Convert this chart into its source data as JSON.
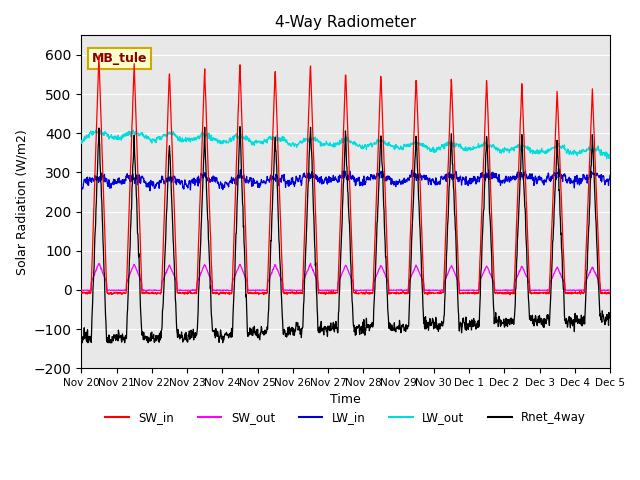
{
  "title": "4-Way Radiometer",
  "xlabel": "Time",
  "ylabel": "Solar Radiation (W/m2)",
  "ylim": [
    -200,
    650
  ],
  "yticks": [
    -200,
    -100,
    0,
    100,
    200,
    300,
    400,
    500,
    600
  ],
  "xtick_labels": [
    "Nov 20",
    "Nov 21",
    "Nov 22",
    "Nov 23",
    "Nov 24",
    "Nov 25",
    "Nov 26",
    "Nov 27",
    "Nov 28",
    "Nov 29",
    "Nov 30",
    "Dec 1",
    "Dec 2",
    "Dec 3",
    "Dec 4",
    "Dec 5"
  ],
  "annotation_text": "MB_tule",
  "colors": {
    "SW_in": "#ff0000",
    "SW_out": "#ff00ff",
    "LW_in": "#0000dd",
    "LW_out": "#00dddd",
    "Rnet_4way": "#000000"
  },
  "background_color": "#e8e8e8",
  "n_days": 15,
  "SW_in_peaks": [
    600,
    575,
    560,
    565,
    580,
    565,
    580,
    560,
    555,
    550,
    545,
    540,
    530,
    510,
    510
  ],
  "dt_hours": 0.25
}
